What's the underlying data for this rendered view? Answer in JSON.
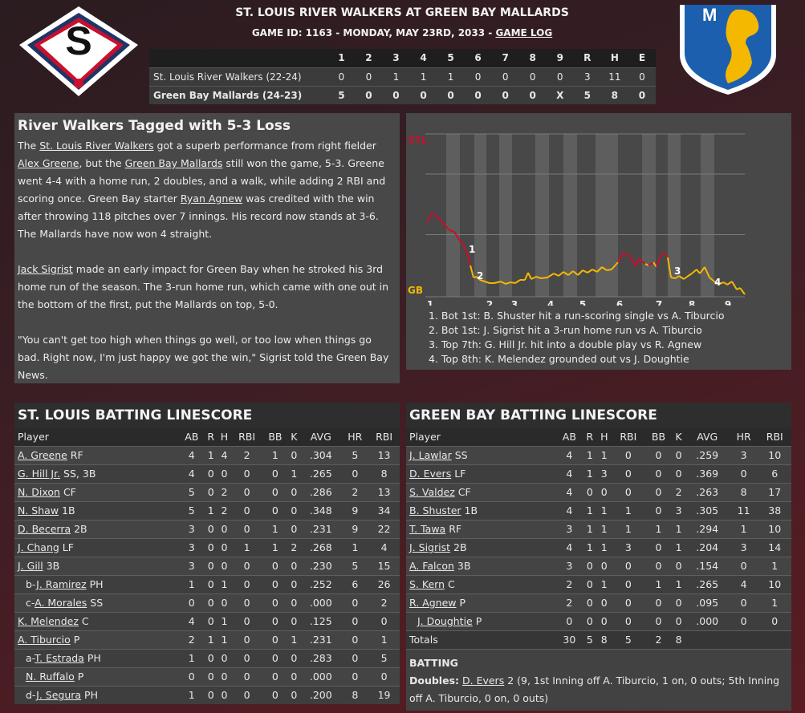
{
  "header": {
    "matchup": "ST. LOUIS RIVER WALKERS AT GREEN BAY MALLARDS",
    "game_id_prefix": "GAME ID: 1163 - MONDAY, MAY 23RD, 2033 - ",
    "game_log_link": "GAME LOG",
    "away_logo_letter": "S",
    "home_logo_letter": "M"
  },
  "boxscore": {
    "columns": [
      "",
      "1",
      "2",
      "3",
      "4",
      "5",
      "6",
      "7",
      "8",
      "9",
      "R",
      "H",
      "E"
    ],
    "away": {
      "team": "St. Louis River Walkers (22-24)",
      "cells": [
        "0",
        "0",
        "1",
        "1",
        "1",
        "0",
        "0",
        "0",
        "0",
        "3",
        "11",
        "0"
      ]
    },
    "home": {
      "team": "Green Bay Mallards (24-23)",
      "cells": [
        "5",
        "0",
        "0",
        "0",
        "0",
        "0",
        "0",
        "0",
        "X",
        "5",
        "8",
        "0"
      ]
    }
  },
  "recap": {
    "headline": "River Walkers Tagged with 5-3 Loss",
    "p1": [
      {
        "t": "The ",
        "link": false
      },
      {
        "t": "St. Louis River Walkers",
        "link": true
      },
      {
        "t": " got a superb performance from right fielder ",
        "link": false
      },
      {
        "t": "Alex Greene",
        "link": true
      },
      {
        "t": ", but the ",
        "link": false
      },
      {
        "t": "Green Bay Mallards",
        "link": true
      },
      {
        "t": " still won the game, 5-3. Greene went 4-4 with a home run, 2 doubles, and a walk, while adding 2 RBI and scoring once. Green Bay starter ",
        "link": false
      },
      {
        "t": "Ryan Agnew",
        "link": true
      },
      {
        "t": " was credited with the win after throwing 118 pitches over 7 innings. His record now stands at 3-6. The Mallards have now won 4 straight.",
        "link": false
      }
    ],
    "p2": [
      {
        "t": "Jack Sigrist",
        "link": true
      },
      {
        "t": " made an early impact for Green Bay when he stroked his 3rd home run of the season. The 3-run home run, which came with one out in the bottom of the first, put the Mallards on top, 5-0.",
        "link": false
      }
    ],
    "p3": "\"You can't get too high when things go well, or too low when things go bad. Right now, I'm just happy we got the win,\" Sigrist told the Green Bay News."
  },
  "win_probability": {
    "top_label": "STL",
    "bottom_label": "GB",
    "innings": [
      "1",
      "2",
      "3",
      "4",
      "5",
      "6",
      "7",
      "8",
      "9"
    ],
    "markers": [
      "1",
      "2",
      "3",
      "4"
    ],
    "notes": [
      "1. Bot 1st: B. Shuster hit a run-scoring single vs A. Tiburcio",
      "2. Bot 1st: J. Sigrist hit a 3-run home run vs A. Tiburcio",
      "3. Top 7th: G. Hill Jr. hit into a double play vs R. Agnew",
      "4. Top 8th: K. Melendez grounded out vs J. Doughtie"
    ],
    "colors": {
      "stl": "#c8102e",
      "gb": "#f5b800"
    }
  },
  "stl_linescore": {
    "title": "ST. LOUIS BATTING LINESCORE",
    "headers": [
      "Player",
      "AB",
      "R",
      "H",
      "RBI",
      "BB",
      "K",
      "AVG",
      "HR",
      "RBI"
    ],
    "rows": [
      {
        "prefix": "",
        "name": "A. Greene",
        "pos": " RF",
        "sub": false,
        "stats": [
          "4",
          "1",
          "4",
          "2",
          "1",
          "0",
          ".304",
          "5",
          "13"
        ]
      },
      {
        "prefix": "",
        "name": "G. Hill Jr.",
        "pos": " SS, 3B",
        "sub": false,
        "stats": [
          "4",
          "0",
          "0",
          "0",
          "0",
          "1",
          ".265",
          "0",
          "8"
        ]
      },
      {
        "prefix": "",
        "name": "N. Dixon",
        "pos": " CF",
        "sub": false,
        "stats": [
          "5",
          "0",
          "2",
          "0",
          "0",
          "0",
          ".286",
          "2",
          "13"
        ]
      },
      {
        "prefix": "",
        "name": "N. Shaw",
        "pos": " 1B",
        "sub": false,
        "stats": [
          "5",
          "1",
          "2",
          "0",
          "0",
          "0",
          ".348",
          "9",
          "34"
        ]
      },
      {
        "prefix": "",
        "name": "D. Becerra",
        "pos": " 2B",
        "sub": false,
        "stats": [
          "3",
          "0",
          "0",
          "0",
          "1",
          "0",
          ".231",
          "9",
          "22"
        ]
      },
      {
        "prefix": "",
        "name": "J. Chang",
        "pos": " LF",
        "sub": false,
        "stats": [
          "3",
          "0",
          "0",
          "1",
          "1",
          "2",
          ".268",
          "1",
          "4"
        ]
      },
      {
        "prefix": "",
        "name": "J. Gill",
        "pos": " 3B",
        "sub": false,
        "stats": [
          "3",
          "0",
          "0",
          "0",
          "0",
          "0",
          ".230",
          "5",
          "15"
        ]
      },
      {
        "prefix": "b-",
        "name": "J. Ramirez",
        "pos": " PH",
        "sub": true,
        "stats": [
          "1",
          "0",
          "1",
          "0",
          "0",
          "0",
          ".252",
          "6",
          "26"
        ]
      },
      {
        "prefix": "c-",
        "name": "A. Morales",
        "pos": " SS",
        "sub": true,
        "stats": [
          "0",
          "0",
          "0",
          "0",
          "0",
          "0",
          ".000",
          "0",
          "2"
        ]
      },
      {
        "prefix": "",
        "name": "K. Melendez",
        "pos": " C",
        "sub": false,
        "stats": [
          "4",
          "0",
          "1",
          "0",
          "0",
          "0",
          ".125",
          "0",
          "0"
        ]
      },
      {
        "prefix": "",
        "name": "A. Tiburcio",
        "pos": " P",
        "sub": false,
        "stats": [
          "2",
          "1",
          "1",
          "0",
          "0",
          "1",
          ".231",
          "0",
          "1"
        ]
      },
      {
        "prefix": "a-",
        "name": "T. Estrada",
        "pos": " PH",
        "sub": true,
        "stats": [
          "1",
          "0",
          "0",
          "0",
          "0",
          "0",
          ".283",
          "0",
          "5"
        ]
      },
      {
        "prefix": "",
        "name": "N. Ruffalo",
        "pos": " P",
        "sub": true,
        "stats": [
          "0",
          "0",
          "0",
          "0",
          "0",
          "0",
          ".000",
          "0",
          "0"
        ]
      },
      {
        "prefix": "d-",
        "name": "J. Segura",
        "pos": " PH",
        "sub": true,
        "stats": [
          "1",
          "0",
          "0",
          "0",
          "0",
          "0",
          ".200",
          "8",
          "19"
        ]
      }
    ]
  },
  "gb_linescore": {
    "title": "GREEN BAY BATTING LINESCORE",
    "headers": [
      "Player",
      "AB",
      "R",
      "H",
      "RBI",
      "BB",
      "K",
      "AVG",
      "HR",
      "RBI"
    ],
    "rows": [
      {
        "prefix": "",
        "name": "J. Lawlar",
        "pos": " SS",
        "sub": false,
        "stats": [
          "4",
          "1",
          "1",
          "0",
          "0",
          "0",
          ".259",
          "3",
          "10"
        ]
      },
      {
        "prefix": "",
        "name": "D. Evers",
        "pos": " LF",
        "sub": false,
        "stats": [
          "4",
          "1",
          "3",
          "0",
          "0",
          "0",
          ".369",
          "0",
          "6"
        ]
      },
      {
        "prefix": "",
        "name": "S. Valdez",
        "pos": " CF",
        "sub": false,
        "stats": [
          "4",
          "0",
          "0",
          "0",
          "0",
          "2",
          ".263",
          "8",
          "17"
        ]
      },
      {
        "prefix": "",
        "name": "B. Shuster",
        "pos": " 1B",
        "sub": false,
        "stats": [
          "4",
          "1",
          "1",
          "1",
          "0",
          "3",
          ".305",
          "11",
          "38"
        ]
      },
      {
        "prefix": "",
        "name": "T. Tawa",
        "pos": " RF",
        "sub": false,
        "stats": [
          "3",
          "1",
          "1",
          "1",
          "1",
          "1",
          ".294",
          "1",
          "10"
        ]
      },
      {
        "prefix": "",
        "name": "J. Sigrist",
        "pos": " 2B",
        "sub": false,
        "stats": [
          "4",
          "1",
          "1",
          "3",
          "0",
          "1",
          ".204",
          "3",
          "14"
        ]
      },
      {
        "prefix": "",
        "name": "A. Falcon",
        "pos": " 3B",
        "sub": false,
        "stats": [
          "3",
          "0",
          "0",
          "0",
          "0",
          "0",
          ".154",
          "0",
          "1"
        ]
      },
      {
        "prefix": "",
        "name": "S. Kern",
        "pos": " C",
        "sub": false,
        "stats": [
          "2",
          "0",
          "1",
          "0",
          "1",
          "1",
          ".265",
          "4",
          "10"
        ]
      },
      {
        "prefix": "",
        "name": "R. Agnew",
        "pos": " P",
        "sub": false,
        "stats": [
          "2",
          "0",
          "0",
          "0",
          "0",
          "0",
          ".095",
          "0",
          "1"
        ]
      },
      {
        "prefix": "",
        "name": "J. Doughtie",
        "pos": " P",
        "sub": true,
        "stats": [
          "0",
          "0",
          "0",
          "0",
          "0",
          "0",
          ".000",
          "0",
          "0"
        ]
      }
    ],
    "totals": {
      "label": "Totals",
      "stats": [
        "30",
        "5",
        "8",
        "5",
        "2",
        "8",
        "",
        "",
        ""
      ]
    },
    "batting_notes": {
      "heading": "BATTING",
      "doubles_label": "Doubles:",
      "doubles_player": "D. Evers",
      "doubles_detail": " 2 (9, 1st Inning off A. Tiburcio, 1 on, 0 outs; 5th Inning off A. Tiburcio, 0 on, 0 outs)"
    }
  }
}
